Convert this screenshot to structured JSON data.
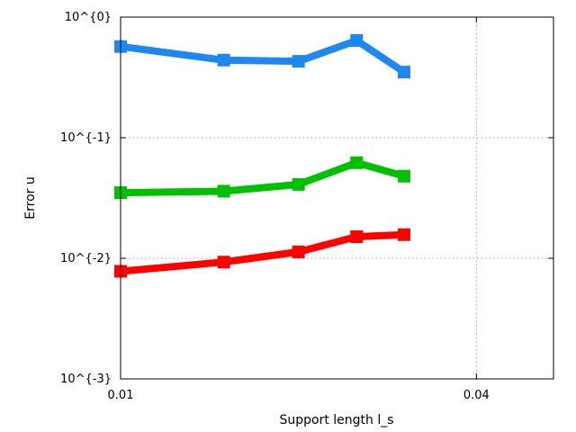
{
  "chart_data": {
    "type": "line",
    "title": "",
    "xlabel": "Support length l_s",
    "ylabel": "Error u",
    "x_scale": "linear",
    "y_scale": "log",
    "xlim": [
      0.01,
      0.0465
    ],
    "ylim": [
      0.001,
      1
    ],
    "grid": true,
    "x_ticks": [
      {
        "value": 0.01,
        "label": "0.01"
      },
      {
        "value": 0.04,
        "label": "0.04"
      }
    ],
    "y_ticks": [
      {
        "value": 1,
        "label": "10^{0}"
      },
      {
        "value": 0.1,
        "label": "10^{-1}"
      },
      {
        "value": 0.01,
        "label": "10^{-2}"
      },
      {
        "value": 0.001,
        "label": "10^{-3}"
      }
    ],
    "x": [
      0.01,
      0.0187,
      0.025,
      0.0299,
      0.0339
    ],
    "series": [
      {
        "color": "#1e88f0",
        "values": [
          0.57,
          0.44,
          0.43,
          0.64,
          0.35
        ]
      },
      {
        "color": "#00c000",
        "values": [
          0.035,
          0.036,
          0.041,
          0.062,
          0.048
        ]
      },
      {
        "color": "#ff0000",
        "values": [
          0.0078,
          0.0093,
          0.0113,
          0.0151,
          0.0157
        ]
      }
    ]
  }
}
